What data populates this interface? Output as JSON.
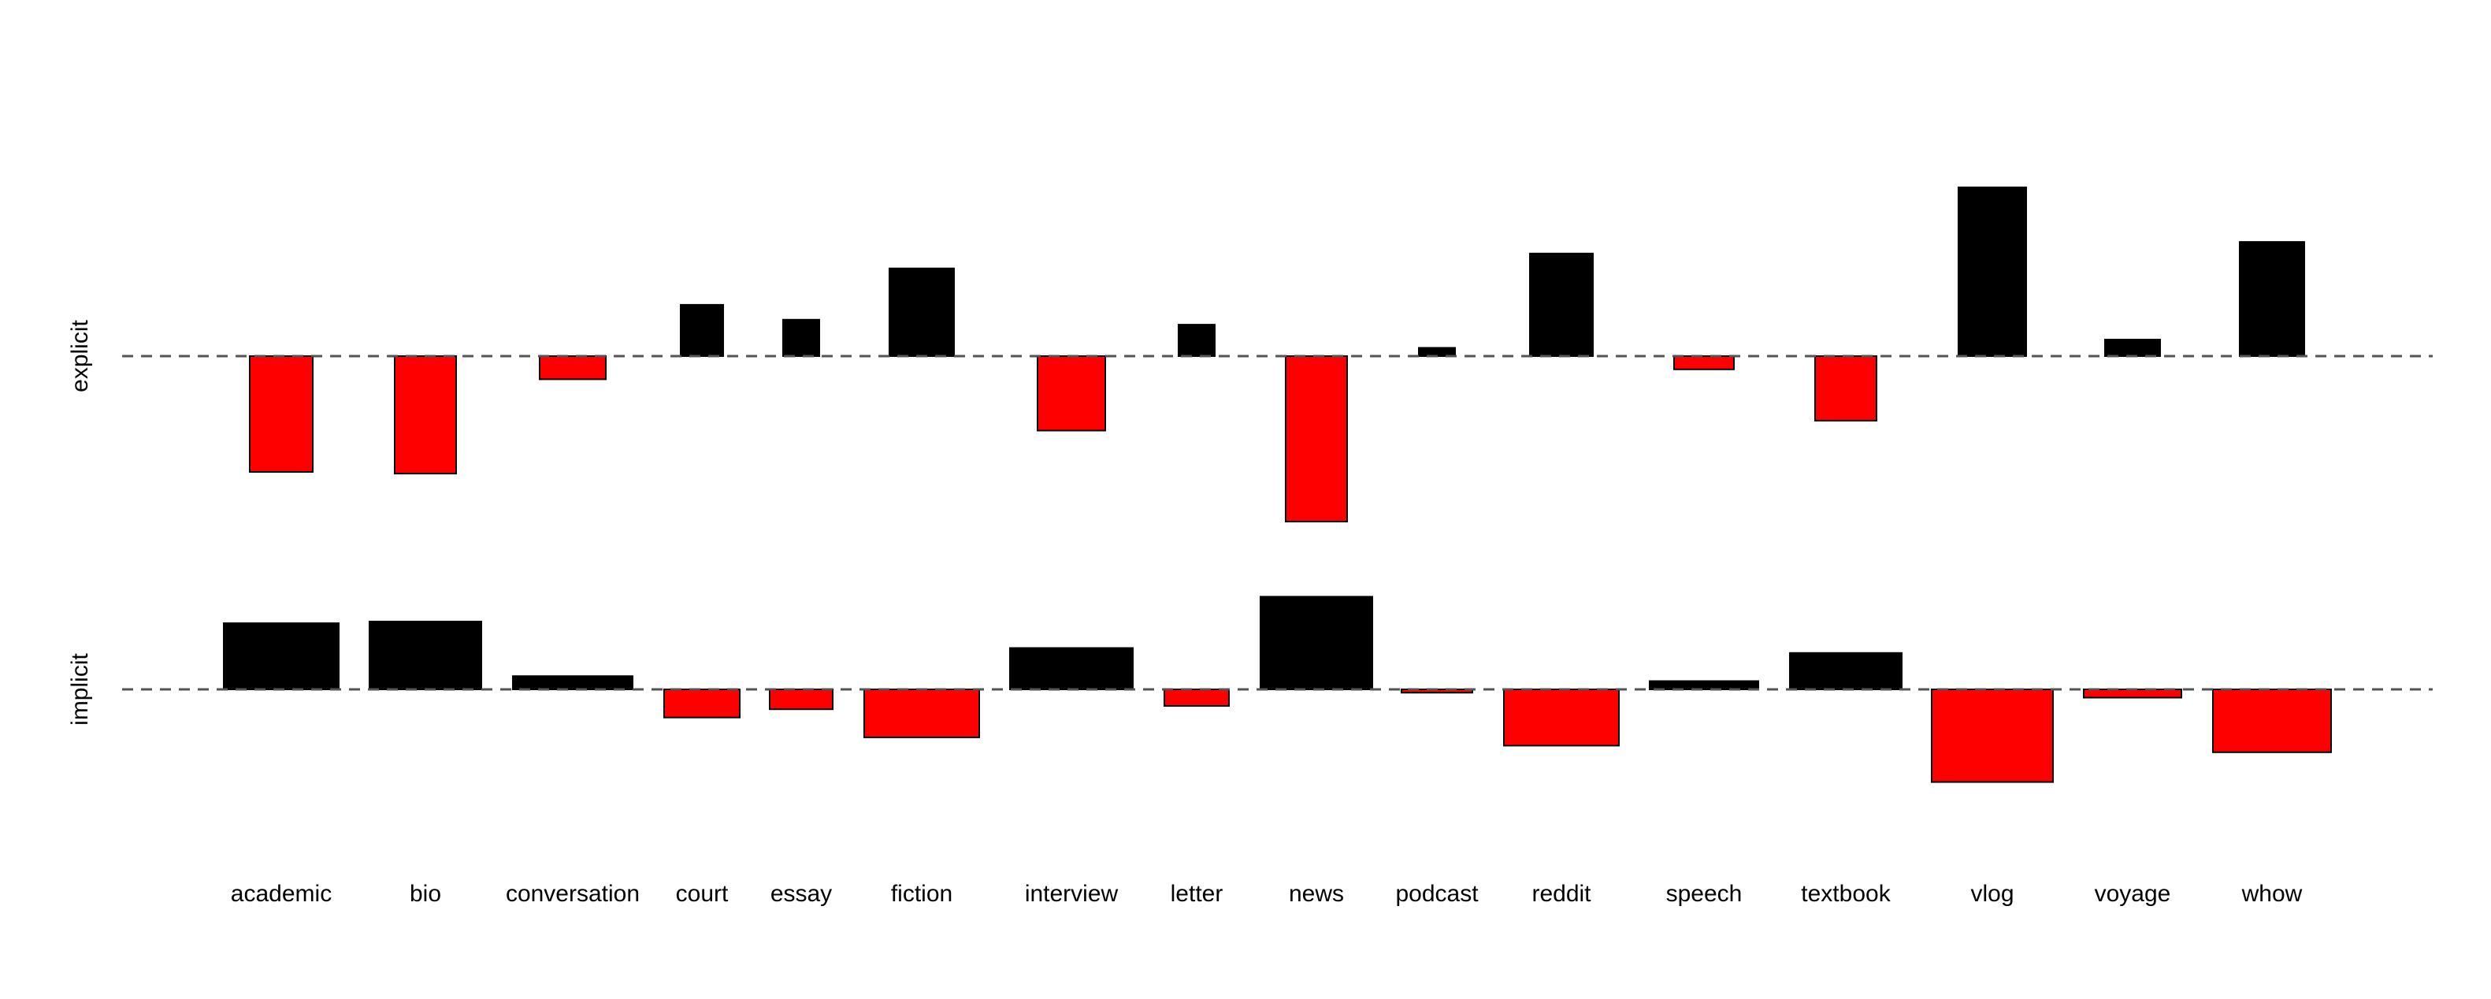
{
  "chart_data": {
    "type": "bar",
    "categories": [
      "academic",
      "bio",
      "conversation",
      "court",
      "essay",
      "fiction",
      "interview",
      "letter",
      "news",
      "podcast",
      "reddit",
      "speech",
      "textbook",
      "vlog",
      "voyage",
      "whow"
    ],
    "series": [
      {
        "name": "explicit",
        "values": [
          -7.0,
          -7.1,
          -1.4,
          3.1,
          2.2,
          5.3,
          -4.5,
          1.9,
          -10.0,
          0.5,
          6.2,
          -0.8,
          -3.9,
          10.2,
          1.0,
          6.9
        ]
      },
      {
        "name": "implicit",
        "values": [
          4.0,
          4.1,
          0.8,
          -1.7,
          -1.2,
          -2.9,
          2.5,
          -1.0,
          5.6,
          -0.2,
          -3.4,
          0.5,
          2.2,
          -5.6,
          -0.5,
          -3.8
        ]
      }
    ],
    "grid": false,
    "legend": "none"
  },
  "colors": {
    "positive": "#000000",
    "negative": "#ff0000",
    "baseline": "#555555"
  }
}
